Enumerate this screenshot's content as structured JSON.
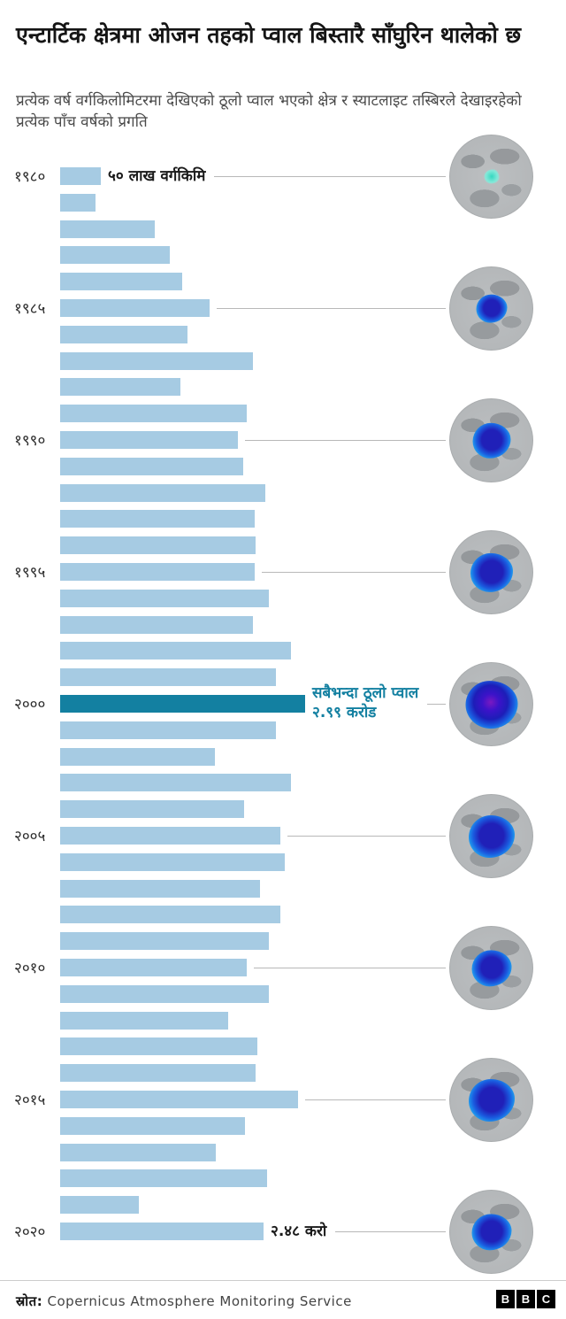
{
  "chart_data": {
    "type": "bar",
    "orientation": "horizontal",
    "title": "एन्टार्टिक क्षेत्रमा ओजन तहको प्वाल बिस्तारै साँघुरिन थालेको छ",
    "subtitle": "प्रत्येक वर्ष वर्गकिलोमिटरमा देखिएको ठूलो प्वाल भएको क्षेत्र र स्याटलाइट तस्बिरले देखाइरहेको प्रत्येक पाँच वर्षको प्रगति",
    "unit": "million sq km",
    "xlim": [
      0,
      30
    ],
    "grid": false,
    "legend": "none",
    "years": [
      1980,
      1981,
      1982,
      1983,
      1984,
      1985,
      1986,
      1987,
      1988,
      1989,
      1990,
      1991,
      1992,
      1993,
      1994,
      1995,
      1996,
      1997,
      1998,
      1999,
      2000,
      2001,
      2002,
      2003,
      2004,
      2005,
      2006,
      2007,
      2008,
      2009,
      2010,
      2011,
      2012,
      2013,
      2014,
      2015,
      2016,
      2017,
      2018,
      2019,
      2020
    ],
    "values": [
      5.0,
      4.3,
      11.5,
      13.4,
      14.9,
      18.2,
      15.5,
      23.5,
      14.7,
      22.8,
      21.7,
      22.3,
      25.0,
      23.7,
      23.9,
      23.7,
      25.5,
      23.5,
      28.2,
      26.3,
      29.9,
      26.3,
      18.9,
      28.2,
      22.5,
      26.9,
      27.4,
      24.4,
      26.9,
      25.5,
      22.8,
      25.5,
      20.5,
      24.1,
      23.9,
      29.0,
      22.6,
      19.0,
      25.3,
      9.6,
      24.8
    ],
    "tick_labels": [
      "१९८०",
      "१९८५",
      "१९९०",
      "१९९५",
      "२०००",
      "२००५",
      "२०१०",
      "२०१५",
      "२०२०"
    ],
    "highlight_year": 2000,
    "bar_color": "#a6cbe3",
    "highlight_color": "#1380a1",
    "annotations": [
      {
        "year": 1980,
        "lines": [
          "५० लाख वर्गकिमि"
        ],
        "color": "#1a1a1a"
      },
      {
        "year": 2000,
        "lines": [
          "सबैभन्दा ठूलो प्वाल",
          "२.९९ करोड"
        ],
        "color": "#1380a1"
      },
      {
        "year": 2020,
        "lines": [
          "२.४८ करो"
        ],
        "color": "#1a1a1a"
      }
    ]
  },
  "satellites": {
    "years": [
      1980,
      1985,
      1990,
      1995,
      2000,
      2005,
      2010,
      2015,
      2020
    ],
    "hole_relative_size": [
      0.18,
      0.37,
      0.45,
      0.51,
      0.62,
      0.55,
      0.47,
      0.55,
      0.47
    ],
    "hole_styles": [
      "faint",
      "normal",
      "normal",
      "normal",
      "max",
      "normal",
      "normal",
      "normal",
      "normal"
    ]
  },
  "colors": {
    "connector": "#b8b8b8",
    "globe_base": "#b5b8ba"
  },
  "footer": {
    "source_label": "स्रोत:",
    "source_name": "Copernicus  Atmosphere  Monitoring  Service",
    "logo": [
      "B",
      "B",
      "C"
    ]
  }
}
